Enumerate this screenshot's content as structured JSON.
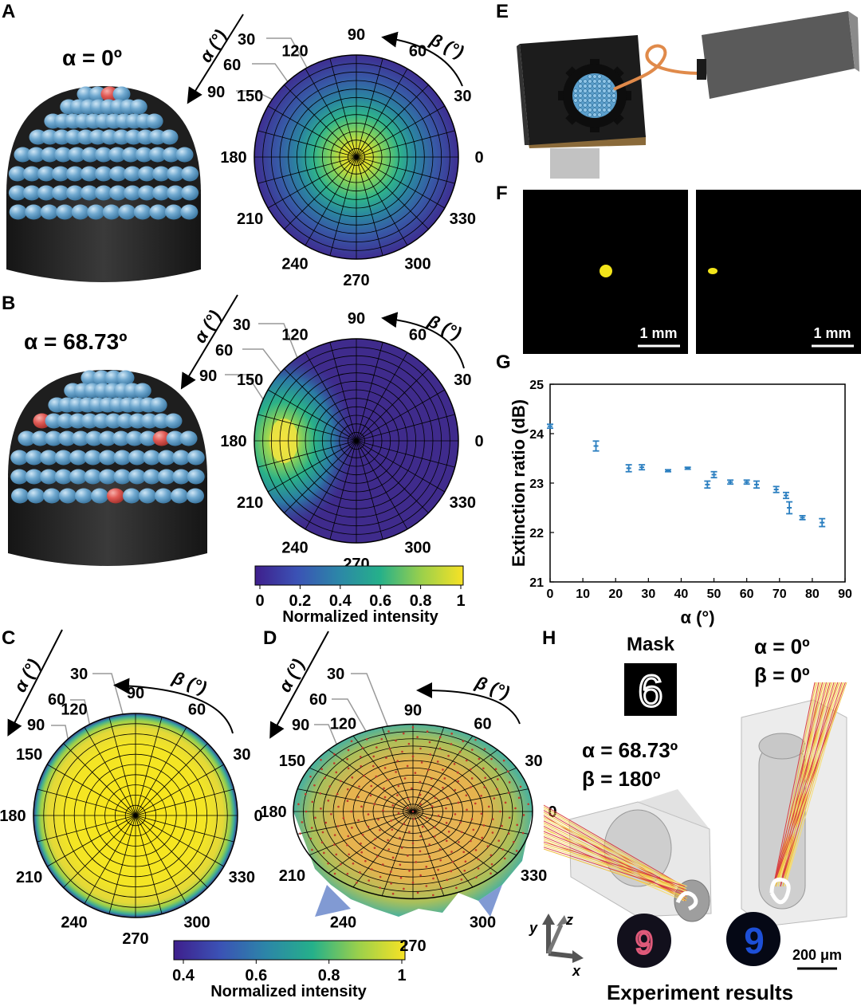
{
  "panels": {
    "A": "A",
    "B": "B",
    "C": "C",
    "D": "D",
    "E": "E",
    "F": "F",
    "G": "G",
    "H": "H"
  },
  "labels": {
    "alpha_axis": "α (°)",
    "beta_axis": "β (°)",
    "a_title": "α = 0º",
    "b_title": "α = 68.73º",
    "alpha_ticks_A": [
      "30",
      "60",
      "90"
    ],
    "alpha_ticks_B": [
      "30",
      "60",
      "90"
    ],
    "alpha_ticks_C": [
      "30",
      "60",
      "90"
    ],
    "alpha_ticks_D": [
      "30",
      "60",
      "90"
    ],
    "beta_ticks": [
      "90",
      "60",
      "30",
      "0",
      "330",
      "300",
      "270",
      "240",
      "210",
      "180",
      "150",
      "120"
    ]
  },
  "colorbar1": {
    "ticks": [
      "0",
      "0.2",
      "0.4",
      "0.6",
      "0.8",
      "1"
    ],
    "label": "Normalized intensity"
  },
  "colorbar2": {
    "ticks": [
      "0.4",
      "0.6",
      "0.8",
      "1"
    ],
    "label": "Normalized intensity"
  },
  "panel_f": {
    "scale_left": "1 mm",
    "scale_right": "1 mm"
  },
  "panel_h": {
    "mask_label": "Mask",
    "mask_digit": "6",
    "left_alpha": "α = 68.73º",
    "left_beta": "β = 180º",
    "right_alpha": "α = 0º",
    "right_beta": "β = 0º",
    "axis_x": "x",
    "axis_y": "y",
    "axis_z": "z",
    "scale": "200 μm",
    "caption": "Experiment results",
    "result_left_digit": "9",
    "result_right_digit": "9"
  },
  "colors": {
    "sphere": "#6fa8cf",
    "red_sphere": "#e05a55",
    "base": "#2a2a2a",
    "viridis_low": "#3e1f8c",
    "viridis_high": "#f7e225",
    "series": "#2b7fc0"
  },
  "chart_data": {
    "type": "scatter",
    "title": "",
    "xlabel": "α (°)",
    "ylabel": "Extinction ratio (dB)",
    "xlim": [
      0,
      90
    ],
    "ylim": [
      21,
      25
    ],
    "xticks": [
      "0",
      "10",
      "20",
      "30",
      "40",
      "50",
      "60",
      "70",
      "80",
      "90"
    ],
    "yticks": [
      "21",
      "22",
      "23",
      "24",
      "25"
    ],
    "grid": false,
    "series": [
      {
        "name": "",
        "marker": "errorbar",
        "x": [
          0,
          14,
          24,
          28,
          36,
          42,
          48,
          50,
          55,
          60,
          63,
          69,
          72,
          73,
          77,
          83
        ],
        "y": [
          24.15,
          23.75,
          23.3,
          23.32,
          23.25,
          23.3,
          22.97,
          23.17,
          23.02,
          23.02,
          22.97,
          22.87,
          22.75,
          22.5,
          22.3,
          22.2
        ],
        "err": [
          0.04,
          0.1,
          0.07,
          0.05,
          0.02,
          0.02,
          0.07,
          0.06,
          0.04,
          0.04,
          0.07,
          0.06,
          0.06,
          0.12,
          0.04,
          0.08
        ]
      }
    ]
  }
}
